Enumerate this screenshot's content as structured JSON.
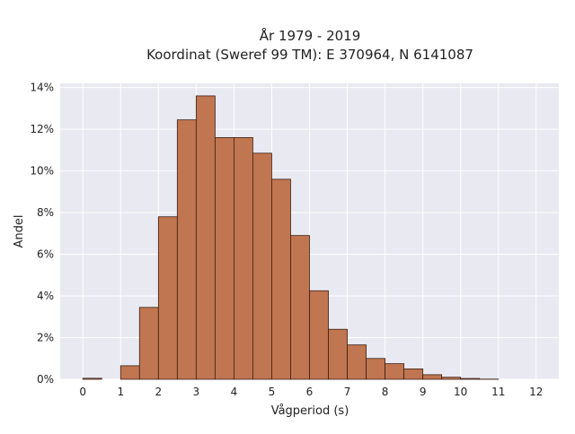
{
  "chart_data": {
    "type": "bar",
    "title_lines": [
      "År 1979 - 2019",
      "Koordinat (Sweref 99 TM): E 370964, N 6141087"
    ],
    "xlabel": "Vågperiod (s)",
    "ylabel": "Andel",
    "xlim": [
      -0.6,
      12.6
    ],
    "ylim": [
      0,
      14.2
    ],
    "x_ticks": [
      0,
      1,
      2,
      3,
      4,
      5,
      6,
      7,
      8,
      9,
      10,
      11,
      12
    ],
    "y_ticks": [
      0,
      2,
      4,
      6,
      8,
      10,
      12,
      14
    ],
    "y_tick_suffix": "%",
    "bin_width": 0.5,
    "bins": [
      {
        "start": 0.0,
        "value": 0.05
      },
      {
        "start": 0.5,
        "value": 0.0
      },
      {
        "start": 1.0,
        "value": 0.65
      },
      {
        "start": 1.5,
        "value": 3.45
      },
      {
        "start": 2.0,
        "value": 7.8
      },
      {
        "start": 2.5,
        "value": 12.45
      },
      {
        "start": 3.0,
        "value": 13.6
      },
      {
        "start": 3.5,
        "value": 11.6
      },
      {
        "start": 4.0,
        "value": 11.6
      },
      {
        "start": 4.5,
        "value": 10.85
      },
      {
        "start": 5.0,
        "value": 9.6
      },
      {
        "start": 5.5,
        "value": 6.9
      },
      {
        "start": 6.0,
        "value": 4.25
      },
      {
        "start": 6.5,
        "value": 2.4
      },
      {
        "start": 7.0,
        "value": 1.65
      },
      {
        "start": 7.5,
        "value": 1.0
      },
      {
        "start": 8.0,
        "value": 0.75
      },
      {
        "start": 8.5,
        "value": 0.5
      },
      {
        "start": 9.0,
        "value": 0.22
      },
      {
        "start": 9.5,
        "value": 0.1
      },
      {
        "start": 10.0,
        "value": 0.04
      },
      {
        "start": 10.5,
        "value": 0.01
      },
      {
        "start": 11.0,
        "value": 0.0
      }
    ],
    "grid": true,
    "colors": {
      "bar_fill": "#c07650",
      "bar_edge": "#3a2016",
      "plot_background": "#e9e9f1",
      "grid": "#ffffff"
    }
  }
}
